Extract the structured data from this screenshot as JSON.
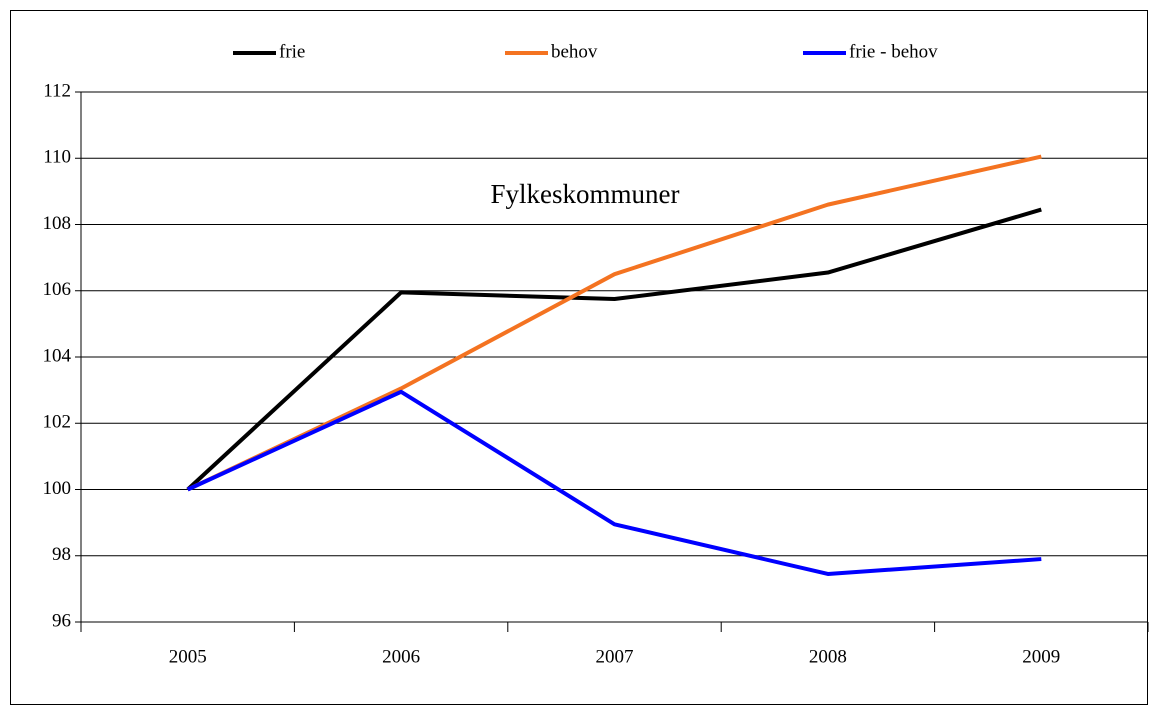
{
  "chart_data": {
    "type": "line",
    "annotation": "Fylkeskommuner",
    "categories": [
      "2005",
      "2006",
      "2007",
      "2008",
      "2009"
    ],
    "series": [
      {
        "name": "frie",
        "color": "#000000",
        "values": [
          100,
          105.95,
          105.75,
          106.55,
          108.45
        ]
      },
      {
        "name": "behov",
        "color": "#f47321",
        "values": [
          100,
          103.05,
          106.5,
          108.6,
          110.05
        ]
      },
      {
        "name": "frie - behov",
        "color": "#0000ff",
        "values": [
          100,
          102.95,
          98.95,
          97.45,
          97.9
        ]
      }
    ],
    "ylim": [
      96,
      112
    ],
    "yticks": [
      96,
      98,
      100,
      102,
      104,
      106,
      108,
      110,
      112
    ],
    "grid": true,
    "legend": "top"
  }
}
